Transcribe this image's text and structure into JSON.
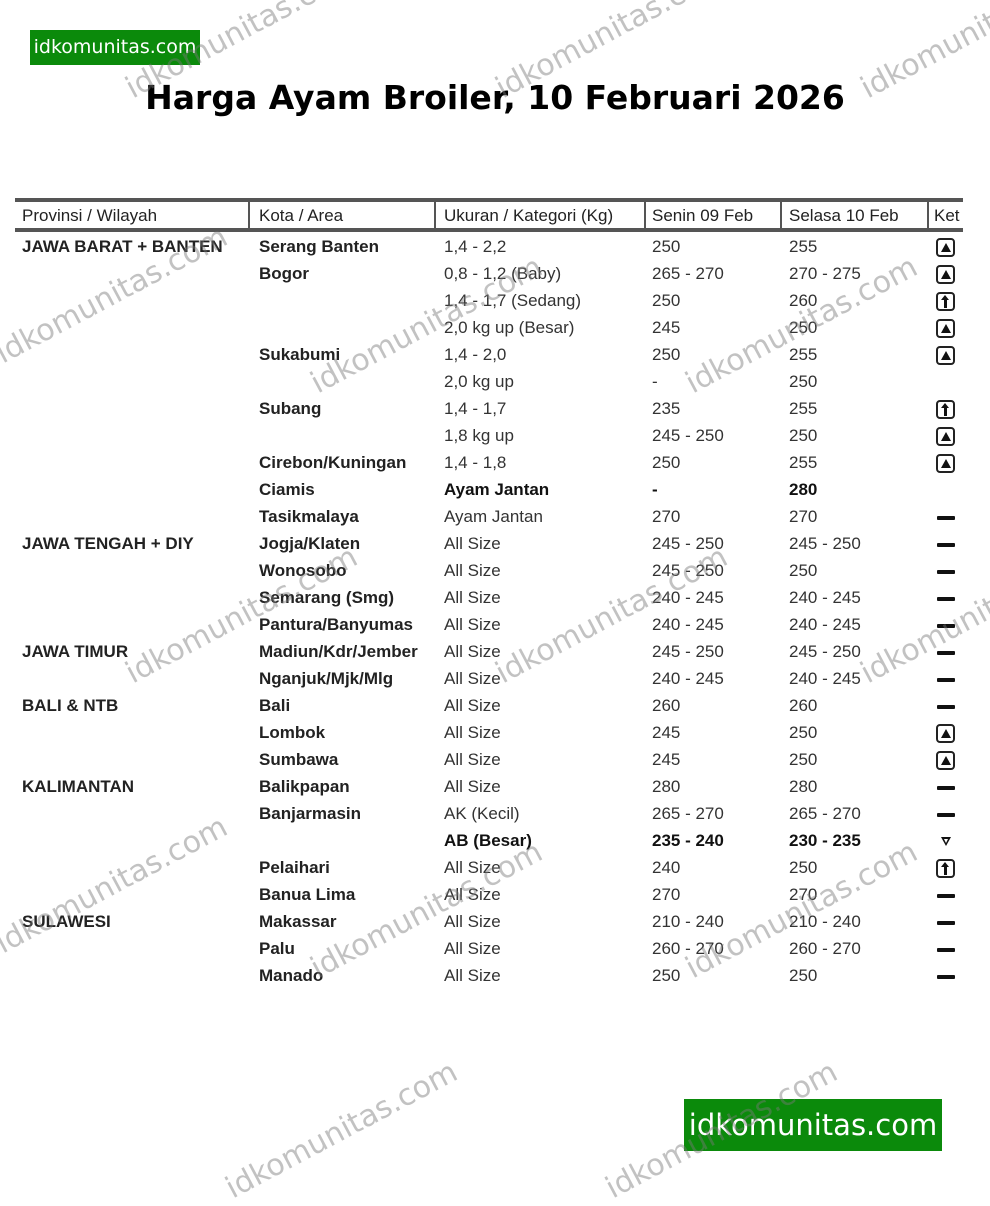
{
  "brand": {
    "logo_text": "idkomunitas.com",
    "watermark": "idkomunitas.com",
    "logo_color": "#0b8a0b"
  },
  "title": "Harga Ayam Broiler, 10 Februari 2026",
  "table": {
    "headers": [
      "Provinsi / Wilayah",
      "Kota / Area",
      "Ukuran / Kategori (Kg)",
      "Senin 09 Feb",
      "Selasa 10 Feb",
      "Ket"
    ],
    "rows": [
      {
        "provinsi": "JAWA BARAT + BANTEN",
        "kota": "Serang Banten",
        "ukuran": "1,4 - 2,2",
        "senin": "250",
        "selasa": "255",
        "ket": "up-icon"
      },
      {
        "provinsi": "",
        "kota": "Bogor",
        "ukuran": "0,8 - 1,2 (Baby)",
        "senin": "265 - 270",
        "selasa": "270 - 275",
        "ket": "up-icon"
      },
      {
        "provinsi": "",
        "kota": "",
        "ukuran": "1,4 - 1,7 (Sedang)",
        "senin": "250",
        "selasa": "260",
        "ket": "arrow-up-icon"
      },
      {
        "provinsi": "",
        "kota": "",
        "ukuran": "2,0 kg up (Besar)",
        "senin": "245",
        "selasa": "250",
        "ket": "up-icon"
      },
      {
        "provinsi": "",
        "kota": "Sukabumi",
        "ukuran": "1,4 - 2,0",
        "senin": "250",
        "selasa": "255",
        "ket": "up-icon"
      },
      {
        "provinsi": "",
        "kota": "",
        "ukuran": "2,0 kg up",
        "senin": "-",
        "selasa": "250",
        "ket": ""
      },
      {
        "provinsi": "",
        "kota": "Subang",
        "ukuran": "1,4 - 1,7",
        "senin": "235",
        "selasa": "255",
        "ket": "arrow-up-icon"
      },
      {
        "provinsi": "",
        "kota": "",
        "ukuran": "1,8 kg up",
        "senin": "245 - 250",
        "selasa": "250",
        "ket": "up-icon"
      },
      {
        "provinsi": "",
        "kota": "Cirebon/Kuningan",
        "ukuran": "1,4 - 1,8",
        "senin": "250",
        "selasa": "255",
        "ket": "up-icon"
      },
      {
        "provinsi": "",
        "kota": "Ciamis",
        "ukuran": "Ayam Jantan",
        "senin": "-",
        "selasa": "280",
        "ket": "",
        "bold": true
      },
      {
        "provinsi": "",
        "kota": "Tasikmalaya",
        "ukuran": "Ayam Jantan",
        "senin": "270",
        "selasa": "270",
        "ket": "flat-icon"
      },
      {
        "provinsi": "JAWA TENGAH + DIY",
        "kota": "Jogja/Klaten",
        "ukuran": "All Size",
        "senin": "245 - 250",
        "selasa": "245 - 250",
        "ket": "flat-icon"
      },
      {
        "provinsi": "",
        "kota": "Wonosobo",
        "ukuran": "All Size",
        "senin": "245 - 250",
        "selasa": "250",
        "ket": "flat-icon"
      },
      {
        "provinsi": "",
        "kota": "Semarang (Smg)",
        "ukuran": "All Size",
        "senin": "240 - 245",
        "selasa": "240 - 245",
        "ket": "flat-icon"
      },
      {
        "provinsi": "",
        "kota": "Pantura/Banyumas",
        "ukuran": "All Size",
        "senin": "240 - 245",
        "selasa": "240 - 245",
        "ket": "flat-icon"
      },
      {
        "provinsi": "JAWA TIMUR",
        "kota": "Madiun/Kdr/Jember",
        "ukuran": "All Size",
        "senin": "245 - 250",
        "selasa": "245 - 250",
        "ket": "flat-icon"
      },
      {
        "provinsi": "",
        "kota": "Nganjuk/Mjk/Mlg",
        "ukuran": "All Size",
        "senin": "240 - 245",
        "selasa": "240 - 245",
        "ket": "flat-icon"
      },
      {
        "provinsi": "BALI & NTB",
        "kota": "Bali",
        "ukuran": "All Size",
        "senin": "260",
        "selasa": "260",
        "ket": "flat-icon"
      },
      {
        "provinsi": "",
        "kota": "Lombok",
        "ukuran": "All Size",
        "senin": "245",
        "selasa": "250",
        "ket": "up-icon"
      },
      {
        "provinsi": "",
        "kota": "Sumbawa",
        "ukuran": "All Size",
        "senin": "245",
        "selasa": "250",
        "ket": "up-icon"
      },
      {
        "provinsi": "KALIMANTAN",
        "kota": "Balikpapan",
        "ukuran": "All Size",
        "senin": "280",
        "selasa": "280",
        "ket": "flat-icon"
      },
      {
        "provinsi": "",
        "kota": "Banjarmasin",
        "ukuran": "AK (Kecil)",
        "senin": "265 - 270",
        "selasa": "265 - 270",
        "ket": "flat-icon"
      },
      {
        "provinsi": "",
        "kota": "",
        "ukuran": "AB (Besar)",
        "senin": "235 - 240",
        "selasa": "230 - 235",
        "ket": "down-icon",
        "bold": true
      },
      {
        "provinsi": "",
        "kota": "Pelaihari",
        "ukuran": "All Size",
        "senin": "240",
        "selasa": "250",
        "ket": "arrow-up-icon"
      },
      {
        "provinsi": "",
        "kota": "Banua Lima",
        "ukuran": "All Size",
        "senin": "270",
        "selasa": "270",
        "ket": "flat-icon"
      },
      {
        "provinsi": "SULAWESI",
        "kota": "Makassar",
        "ukuran": "All Size",
        "senin": "210 - 240",
        "selasa": "210 - 240",
        "ket": "flat-icon"
      },
      {
        "provinsi": "",
        "kota": "Palu",
        "ukuran": "All Size",
        "senin": "260 - 270",
        "selasa": "260 - 270",
        "ket": "flat-icon"
      },
      {
        "provinsi": "",
        "kota": "Manado",
        "ukuran": "All Size",
        "senin": "250",
        "selasa": "250",
        "ket": "flat-icon"
      }
    ]
  }
}
